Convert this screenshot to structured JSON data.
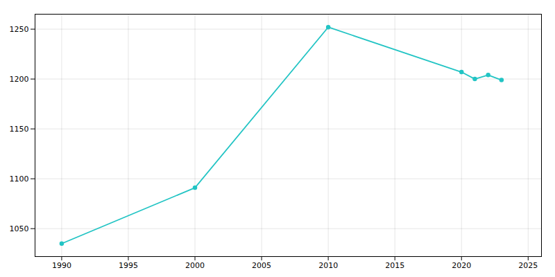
{
  "chart_data": {
    "type": "line",
    "x": [
      1990,
      2000,
      2010,
      2020,
      2021,
      2022,
      2023
    ],
    "values": [
      1035,
      1091,
      1252,
      1207,
      1200,
      1204,
      1199
    ],
    "color": "#22C4C4",
    "marker": "circle",
    "xlim": [
      1988,
      2026
    ],
    "ylim": [
      1022,
      1265
    ],
    "xticks": [
      1990,
      1995,
      2000,
      2005,
      2010,
      2015,
      2020,
      2025
    ],
    "yticks": [
      1050,
      1100,
      1150,
      1200,
      1250
    ],
    "grid": true
  }
}
